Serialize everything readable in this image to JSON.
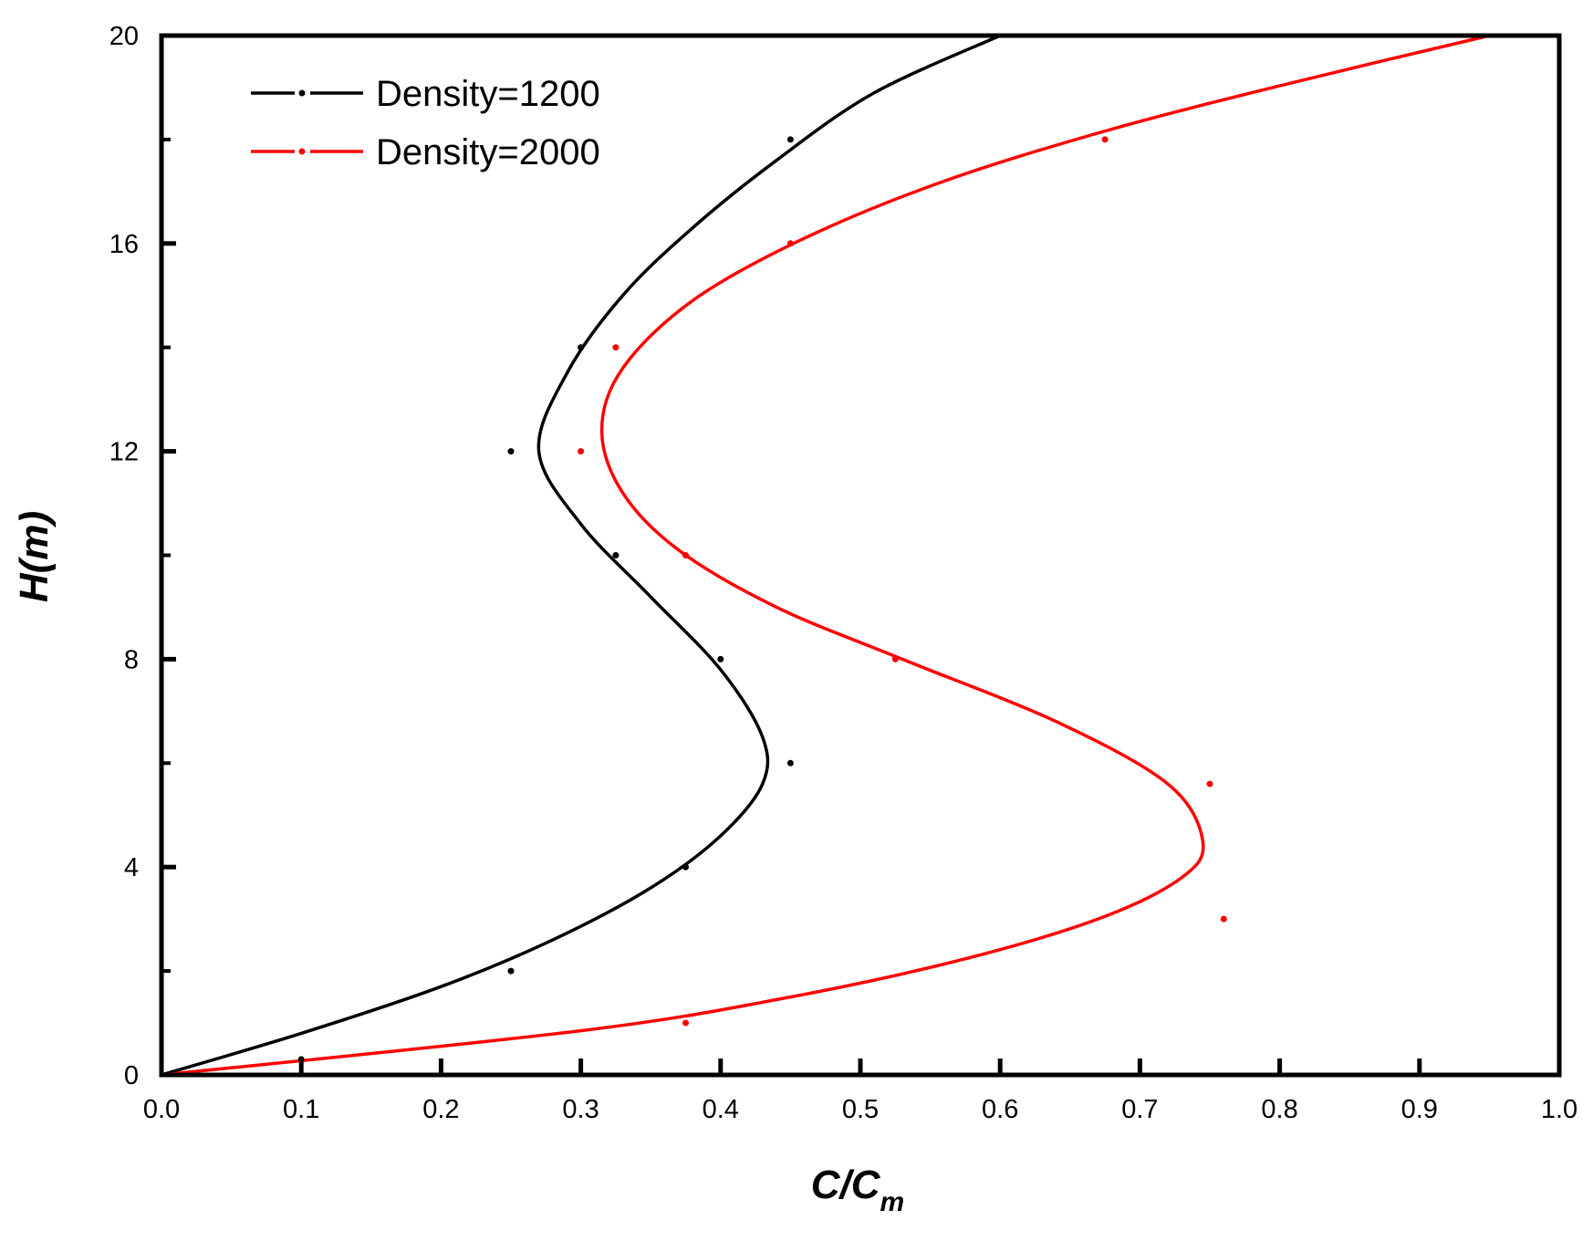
{
  "chart_data": {
    "type": "line",
    "title": "",
    "xlabel": {
      "main": "C/C",
      "sub": "m"
    },
    "ylabel": "H(m)",
    "xlim": [
      0.0,
      1.0
    ],
    "ylim": [
      0,
      20
    ],
    "grid": false,
    "legend_position": "top-left",
    "x_ticks": [
      "0.0",
      "0.1",
      "0.2",
      "0.3",
      "0.4",
      "0.5",
      "0.6",
      "0.7",
      "0.8",
      "0.9",
      "1.0"
    ],
    "y_ticks": [
      "0",
      "4",
      "8",
      "12",
      "16",
      "20"
    ],
    "series": [
      {
        "name": "Density=1200",
        "color": "#000000",
        "points": [
          {
            "x": 0.1,
            "y": 0.3
          },
          {
            "x": 0.25,
            "y": 2
          },
          {
            "x": 0.375,
            "y": 4
          },
          {
            "x": 0.45,
            "y": 6
          },
          {
            "x": 0.4,
            "y": 8
          },
          {
            "x": 0.325,
            "y": 10
          },
          {
            "x": 0.25,
            "y": 12
          },
          {
            "x": 0.3,
            "y": 14
          },
          {
            "x": 0.45,
            "y": 18
          }
        ],
        "fit": [
          {
            "x": 0.0,
            "y": 0
          },
          {
            "x": 0.1,
            "y": 0.8
          },
          {
            "x": 0.2,
            "y": 1.7
          },
          {
            "x": 0.28,
            "y": 2.6
          },
          {
            "x": 0.35,
            "y": 3.6
          },
          {
            "x": 0.4,
            "y": 4.6
          },
          {
            "x": 0.43,
            "y": 5.6
          },
          {
            "x": 0.43,
            "y": 6.5
          },
          {
            "x": 0.4,
            "y": 7.8
          },
          {
            "x": 0.35,
            "y": 9.2
          },
          {
            "x": 0.3,
            "y": 10.6
          },
          {
            "x": 0.27,
            "y": 12.0
          },
          {
            "x": 0.29,
            "y": 13.5
          },
          {
            "x": 0.33,
            "y": 15.0
          },
          {
            "x": 0.38,
            "y": 16.3
          },
          {
            "x": 0.44,
            "y": 17.6
          },
          {
            "x": 0.51,
            "y": 18.9
          },
          {
            "x": 0.6,
            "y": 20.0
          }
        ]
      },
      {
        "name": "Density=2000",
        "color": "#ff0000",
        "points": [
          {
            "x": 0.375,
            "y": 1
          },
          {
            "x": 0.76,
            "y": 3
          },
          {
            "x": 0.75,
            "y": 5.6
          },
          {
            "x": 0.525,
            "y": 8
          },
          {
            "x": 0.375,
            "y": 10
          },
          {
            "x": 0.3,
            "y": 12
          },
          {
            "x": 0.325,
            "y": 14
          },
          {
            "x": 0.45,
            "y": 16
          },
          {
            "x": 0.675,
            "y": 18
          }
        ],
        "fit": [
          {
            "x": 0.0,
            "y": 0
          },
          {
            "x": 0.3,
            "y": 0.85
          },
          {
            "x": 0.45,
            "y": 1.5
          },
          {
            "x": 0.57,
            "y": 2.2
          },
          {
            "x": 0.67,
            "y": 3.0
          },
          {
            "x": 0.73,
            "y": 3.8
          },
          {
            "x": 0.745,
            "y": 4.5
          },
          {
            "x": 0.72,
            "y": 5.6
          },
          {
            "x": 0.64,
            "y": 6.8
          },
          {
            "x": 0.53,
            "y": 8.0
          },
          {
            "x": 0.44,
            "y": 9.0
          },
          {
            "x": 0.37,
            "y": 10.1
          },
          {
            "x": 0.33,
            "y": 11.2
          },
          {
            "x": 0.315,
            "y": 12.4
          },
          {
            "x": 0.33,
            "y": 13.6
          },
          {
            "x": 0.38,
            "y": 14.9
          },
          {
            "x": 0.46,
            "y": 16.1
          },
          {
            "x": 0.56,
            "y": 17.2
          },
          {
            "x": 0.68,
            "y": 18.2
          },
          {
            "x": 0.81,
            "y": 19.1
          },
          {
            "x": 0.95,
            "y": 20.0
          }
        ]
      }
    ]
  }
}
